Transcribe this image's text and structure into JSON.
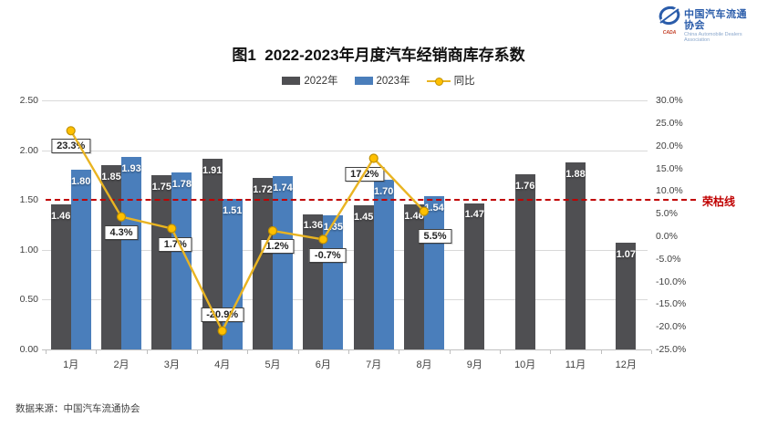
{
  "logo": {
    "org_name": "中国汽车流通协会",
    "org_name_en": "China Automobile Dealers Association",
    "badge": "CADA",
    "brand_color": "#2a5caa"
  },
  "title": "图1  2022-2023年月度汽车经销商库存系数",
  "legend": [
    {
      "label": "2022年",
      "color": "#4f4f52",
      "type": "swatch"
    },
    {
      "label": "2023年",
      "color": "#4a7ebb",
      "type": "swatch"
    },
    {
      "label": "同比",
      "color": "#e9b422",
      "type": "line"
    }
  ],
  "chart_data": {
    "type": "bar",
    "categories": [
      "1月",
      "2月",
      "3月",
      "4月",
      "5月",
      "6月",
      "7月",
      "8月",
      "9月",
      "10月",
      "11月",
      "12月"
    ],
    "series": [
      {
        "name": "2022年",
        "type": "bar",
        "color": "#4f4f52",
        "values": [
          1.46,
          1.85,
          1.75,
          1.91,
          1.72,
          1.36,
          1.45,
          1.46,
          1.47,
          1.76,
          1.88,
          1.07
        ]
      },
      {
        "name": "2023年",
        "type": "bar",
        "color": "#4a7ebb",
        "values": [
          1.8,
          1.93,
          1.78,
          1.51,
          1.74,
          1.35,
          1.7,
          1.54,
          null,
          null,
          null,
          null
        ]
      },
      {
        "name": "同比",
        "type": "line",
        "axis": "right",
        "color": "#e9b422",
        "marker_fill": "#ffc000",
        "marker_border": "#bf9000",
        "values_pct": [
          23.3,
          4.3,
          1.7,
          -20.9,
          1.2,
          -0.7,
          17.2,
          5.5,
          null,
          null,
          null,
          null
        ]
      }
    ],
    "left_axis": {
      "min": 0,
      "max": 2.5,
      "step": 0.5,
      "ticks": [
        "2.50",
        "2.00",
        "1.50",
        "1.00",
        "0.50",
        "0.00"
      ]
    },
    "right_axis": {
      "min": -25,
      "max": 30,
      "step": 5,
      "ticks": [
        "30.0%",
        "25.0%",
        "20.0%",
        "15.0%",
        "10.0%",
        "5.0%",
        "0.0%",
        "-5.0%",
        "-10.0%",
        "-15.0%",
        "-20.0%",
        "-25.0%"
      ]
    },
    "reference_line": {
      "value": 1.5,
      "label": "荣枯线",
      "color": "#c00000",
      "style": "dashed"
    },
    "grid": "horizontal",
    "legend_position": "top"
  },
  "source": "数据来源：中国汽车流通协会"
}
